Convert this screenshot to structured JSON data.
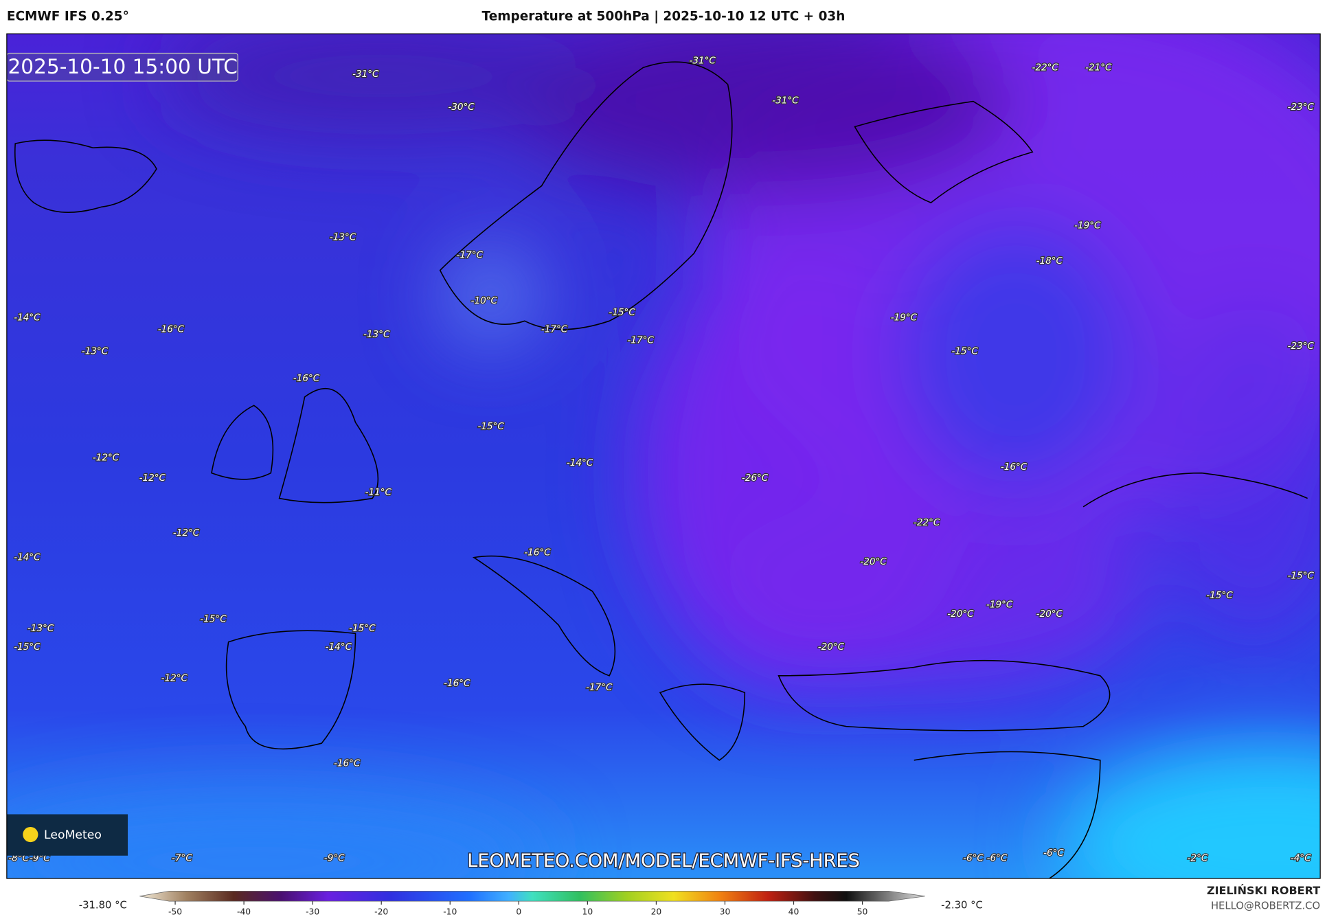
{
  "header": {
    "model": "ECMWF IFS 0.25°",
    "title": "Temperature at 500hPa | 2025-10-10 12 UTC + 03h"
  },
  "map": {
    "timestamp": "2025-10-10 15:00 UTC",
    "logo": "LeoMeteo",
    "watermark": "LEOMETEO.COM/MODEL/ECMWF-IFS-HRES",
    "labels": [
      "-31°C",
      "-30°C",
      "-31°C",
      "-31°C",
      "-22°C",
      "-21°C",
      "-23°C",
      "-13°C",
      "-17°C",
      "-10°C",
      "-19°C",
      "-18°C",
      "-14°C",
      "-16°C",
      "-13°C",
      "-15°C",
      "-17°C",
      "-17°C",
      "-19°C",
      "-13°C",
      "-16°C",
      "-15°C",
      "-23°C",
      "-15°C",
      "-12°C",
      "-14°C",
      "-16°C",
      "-12°C",
      "-26°C",
      "-11°C",
      "-22°C",
      "-12°C",
      "-16°C",
      "-14°C",
      "-20°C",
      "-15°C",
      "-15°C",
      "-19°C",
      "-20°C",
      "-20°C",
      "-15°C",
      "-13°C",
      "-15°C",
      "-15°C",
      "-14°C",
      "-20°C",
      "-12°C",
      "-16°C",
      "-17°C",
      "-16°C",
      "-7°C",
      "-9°C",
      "-6°C",
      "-6°C",
      "-6°C",
      "-2°C",
      "-4°C",
      "-8°C",
      "-9°C"
    ]
  },
  "colorbar": {
    "min_label": "-31.80 °C",
    "max_label": "-2.30 °C",
    "ticks": [
      -50,
      -40,
      -30,
      -20,
      -10,
      0,
      10,
      20,
      30,
      40,
      50
    ]
  },
  "footer": {
    "author": "ZIELIŃSKI ROBERT",
    "email": "HELLO@ROBERTZ.CO"
  }
}
